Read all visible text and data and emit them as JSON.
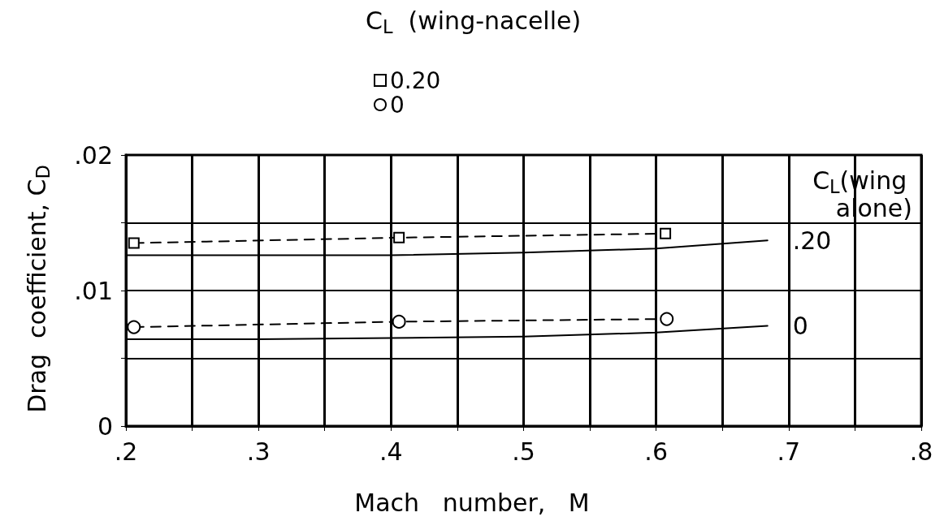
{
  "chart_data": {
    "type": "line",
    "xlabel": "Mach   number,   M",
    "ylabel": "Drag  coefficient, C$_{D}$",
    "legend_title": "C$_{L}$  (wing-nacelle)",
    "legend": "top",
    "grid": true,
    "xlim": [
      0.2,
      0.8
    ],
    "xticks": [
      {
        "value": 0.2,
        "label": ".2"
      },
      {
        "value": 0.25,
        "label": null
      },
      {
        "value": 0.3,
        "label": ".3"
      },
      {
        "value": 0.35,
        "label": null
      },
      {
        "value": 0.4,
        "label": ".4"
      },
      {
        "value": 0.45,
        "label": null
      },
      {
        "value": 0.5,
        "label": ".5"
      },
      {
        "value": 0.55,
        "label": null
      },
      {
        "value": 0.6,
        "label": ".6"
      },
      {
        "value": 0.65,
        "label": null
      },
      {
        "value": 0.7,
        "label": ".7"
      },
      {
        "value": 0.75,
        "label": null
      },
      {
        "value": 0.8,
        "label": ".8"
      }
    ],
    "ylim": [
      0,
      0.02
    ],
    "yticks": [
      0,
      {
        "value": 0.005,
        "label": null
      },
      {
        "value": 0.01,
        "label": ".01"
      },
      {
        "value": 0.015,
        "label": null
      },
      {
        "value": 0.02,
        "label": ".02"
      }
    ],
    "series": [
      {
        "name": "0.20",
        "color": "#000000",
        "marker": "square",
        "line_style": "dashed",
        "x": [
          0.206,
          0.406,
          0.607
        ],
        "values": [
          0.0135,
          0.0139,
          0.0142
        ]
      },
      {
        "name": "0",
        "color": "#000000",
        "marker": "circle",
        "line_style": "dashed",
        "x": [
          0.206,
          0.406,
          0.608
        ],
        "values": [
          0.0073,
          0.0077,
          0.0079
        ]
      },
      {
        "color": "#000000",
        "marker": "none",
        "line_style": "solid",
        "x": [
          0.2,
          0.3,
          0.4,
          0.5,
          0.6,
          0.684
        ],
        "values": [
          0.0126,
          0.0126,
          0.0126,
          0.0128,
          0.0131,
          0.0137
        ]
      },
      {
        "color": "#000000",
        "marker": "none",
        "line_style": "solid",
        "x": [
          0.2,
          0.3,
          0.4,
          0.5,
          0.6,
          0.684
        ],
        "values": [
          0.0064,
          0.0064,
          0.0065,
          0.0066,
          0.0069,
          0.0074
        ]
      }
    ],
    "annotations": [
      "C$_{L}$(wing alone)",
      {
        "text": ".20",
        "x": 0.684,
        "y": 0.0137
      },
      {
        "text": "0",
        "x": 0.684,
        "y": 0.0074
      }
    ]
  }
}
